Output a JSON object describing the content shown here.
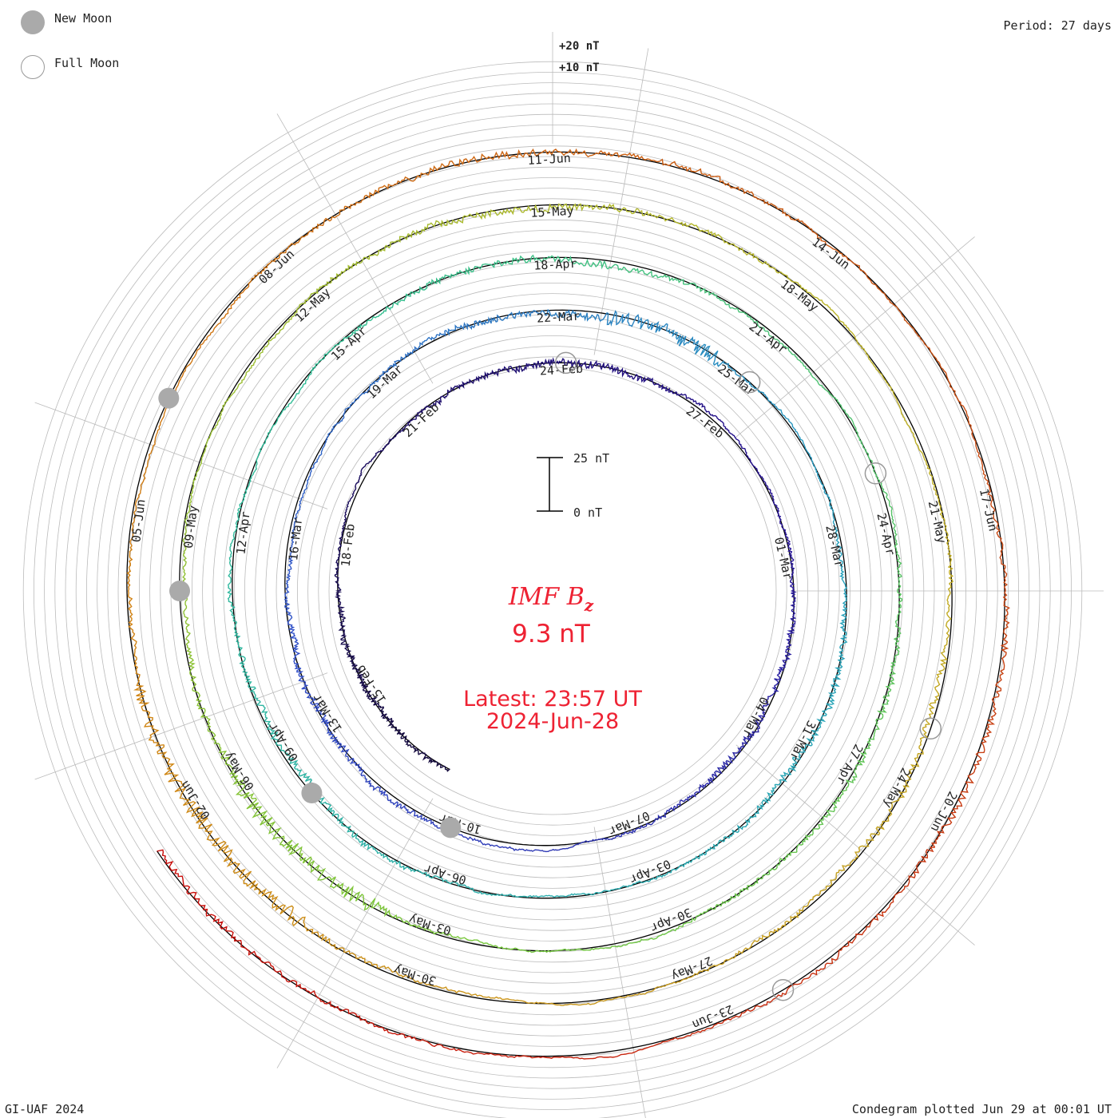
{
  "header": {
    "period": "Period: 27 days"
  },
  "legend": {
    "new_moon": "New Moon",
    "full_moon": "Full Moon"
  },
  "footer": {
    "credit": "GI-UAF 2024",
    "plotted": "Condegram plotted Jun 29 at 00:01 UT"
  },
  "center": {
    "parameter": "IMF B",
    "subscript": "z",
    "value": "9.3 nT",
    "latest": "Latest: 23:57 UT",
    "date": "2024-Jun-28"
  },
  "scale_bar": {
    "top_label": "25 nT",
    "bottom_label": "0 nT"
  },
  "colors": {
    "accent": "#ee2233",
    "grid": "#bbbbbb",
    "baseline": "#000000"
  },
  "chart_data": {
    "type": "line",
    "title": "IMF Bz",
    "period_days": 27,
    "range_labels": [
      "+20 nT",
      "+10 nT"
    ],
    "start_date": "2024-02-13",
    "end_date": "2024-06-28",
    "date_labels": [
      "15-Feb",
      "18-Feb",
      "21-Feb",
      "24-Feb",
      "27-Feb",
      "01-Mar",
      "04-Mar",
      "07-Mar",
      "10-Mar",
      "13-Mar",
      "16-Mar",
      "19-Mar",
      "22-Mar",
      "25-Mar",
      "28-Mar",
      "31-Mar",
      "03-Apr",
      "06-Apr",
      "09-Apr",
      "12-Apr",
      "15-Apr",
      "18-Apr",
      "21-Apr",
      "24-Apr",
      "27-Apr",
      "30-Apr",
      "03-May",
      "06-May",
      "09-May",
      "12-May",
      "15-May",
      "18-May",
      "21-May",
      "24-May",
      "27-May",
      "30-May",
      "02-Jun",
      "05-Jun",
      "08-Jun",
      "11-Jun",
      "14-Jun",
      "17-Jun",
      "20-Jun",
      "23-Jun"
    ],
    "new_moon_dates": [
      "2024-03-10",
      "2024-04-08",
      "2024-05-08",
      "2024-06-06"
    ],
    "full_moon_dates": [
      "2024-02-24",
      "2024-03-25",
      "2024-04-23",
      "2024-05-23",
      "2024-06-22"
    ],
    "latest_value_nT": 9.3
  }
}
